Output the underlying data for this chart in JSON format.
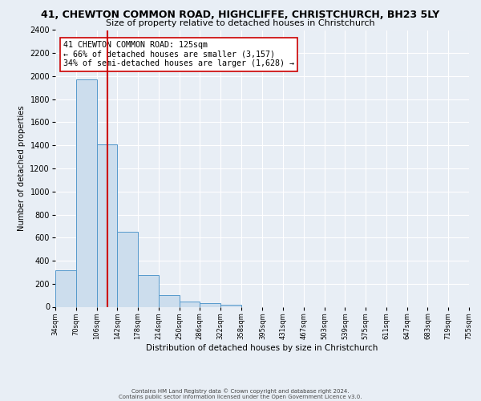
{
  "title": "41, CHEWTON COMMON ROAD, HIGHCLIFFE, CHRISTCHURCH, BH23 5LY",
  "subtitle": "Size of property relative to detached houses in Christchurch",
  "xlabel": "Distribution of detached houses by size in Christchurch",
  "ylabel": "Number of detached properties",
  "bar_edges": [
    34,
    70,
    106,
    142,
    178,
    214,
    250,
    286,
    322,
    358,
    395,
    431,
    467,
    503,
    539,
    575,
    611,
    647,
    683,
    719,
    755
  ],
  "bar_heights": [
    320,
    1970,
    1410,
    650,
    275,
    100,
    45,
    30,
    20,
    0,
    0,
    0,
    0,
    0,
    0,
    0,
    0,
    0,
    0,
    0
  ],
  "property_size": 125,
  "bar_color": "#ccdded",
  "bar_edge_color": "#5599cc",
  "vline_color": "#cc0000",
  "annotation_box_edge": "#cc0000",
  "annotation_text": "41 CHEWTON COMMON ROAD: 125sqm\n← 66% of detached houses are smaller (3,157)\n34% of semi-detached houses are larger (1,628) →",
  "ylim": [
    0,
    2400
  ],
  "yticks": [
    0,
    200,
    400,
    600,
    800,
    1000,
    1200,
    1400,
    1600,
    1800,
    2000,
    2200,
    2400
  ],
  "tick_labels": [
    "34sqm",
    "70sqm",
    "106sqm",
    "142sqm",
    "178sqm",
    "214sqm",
    "250sqm",
    "286sqm",
    "322sqm",
    "358sqm",
    "395sqm",
    "431sqm",
    "467sqm",
    "503sqm",
    "539sqm",
    "575sqm",
    "611sqm",
    "647sqm",
    "683sqm",
    "719sqm",
    "755sqm"
  ],
  "footer_line1": "Contains HM Land Registry data © Crown copyright and database right 2024.",
  "footer_line2": "Contains public sector information licensed under the Open Government Licence v3.0.",
  "background_color": "#e8eef5",
  "plot_bg_color": "#e8eef5",
  "grid_color": "#ffffff",
  "title_fontsize": 9,
  "subtitle_fontsize": 8
}
